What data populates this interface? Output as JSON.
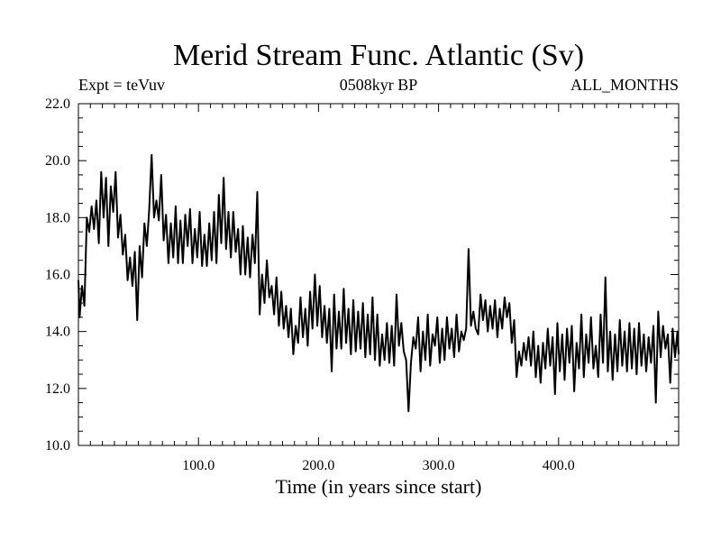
{
  "chart_data": {
    "type": "line",
    "title": "Merid Stream Func. Atlantic (Sv)",
    "left_label": "Expt = teVuv",
    "center_label": "0508kyr BP",
    "right_label": "ALL_MONTHS",
    "xlabel": "Time (in years since start)",
    "ylabel": "",
    "xlim": [
      0,
      500
    ],
    "ylim": [
      10.0,
      22.0
    ],
    "x_ticks": [
      100,
      200,
      300,
      400
    ],
    "x_tick_labels": [
      "100.0",
      "200.0",
      "300.0",
      "400.0"
    ],
    "y_ticks": [
      10,
      12,
      14,
      16,
      18,
      20,
      22
    ],
    "y_tick_labels": [
      "10.0",
      "12.0",
      "14.0",
      "16.0",
      "18.0",
      "20.0",
      "22.0"
    ],
    "line_color": "#000000",
    "series": [
      {
        "name": "",
        "anchors": [
          [
            0,
            15.8
          ],
          [
            1,
            14.5
          ],
          [
            3,
            15.6
          ],
          [
            5,
            14.9
          ],
          [
            7,
            18.0
          ],
          [
            9,
            17.5
          ],
          [
            11,
            18.4
          ],
          [
            13,
            17.6
          ],
          [
            15,
            18.6
          ],
          [
            17,
            17.1
          ],
          [
            19,
            19.6
          ],
          [
            21,
            18.0
          ],
          [
            23,
            19.4
          ],
          [
            25,
            17.0
          ],
          [
            27,
            19.1
          ],
          [
            29,
            18.2
          ],
          [
            31,
            19.6
          ],
          [
            33,
            17.3
          ],
          [
            35,
            18.1
          ],
          [
            37,
            16.7
          ],
          [
            39,
            17.4
          ],
          [
            41,
            15.8
          ],
          [
            43,
            16.6
          ],
          [
            45,
            15.6
          ],
          [
            47,
            16.8
          ],
          [
            49,
            14.4
          ],
          [
            51,
            17.0
          ],
          [
            53,
            15.9
          ],
          [
            55,
            17.8
          ],
          [
            57,
            17.0
          ],
          [
            59,
            18.3
          ],
          [
            61,
            20.2
          ],
          [
            63,
            18.0
          ],
          [
            65,
            18.6
          ],
          [
            67,
            17.9
          ],
          [
            69,
            19.5
          ],
          [
            71,
            17.2
          ],
          [
            73,
            18.1
          ],
          [
            75,
            16.4
          ],
          [
            77,
            17.8
          ],
          [
            79,
            16.6
          ],
          [
            81,
            18.4
          ],
          [
            83,
            16.4
          ],
          [
            85,
            17.9
          ],
          [
            87,
            16.4
          ],
          [
            89,
            18.1
          ],
          [
            91,
            17.0
          ],
          [
            93,
            18.3
          ],
          [
            95,
            16.4
          ],
          [
            97,
            17.6
          ],
          [
            99,
            16.6
          ],
          [
            101,
            18.2
          ],
          [
            103,
            16.3
          ],
          [
            105,
            17.4
          ],
          [
            107,
            16.3
          ],
          [
            109,
            17.8
          ],
          [
            111,
            16.5
          ],
          [
            113,
            18.2
          ],
          [
            115,
            16.4
          ],
          [
            117,
            18.8
          ],
          [
            119,
            17.1
          ],
          [
            121,
            19.4
          ],
          [
            123,
            16.9
          ],
          [
            125,
            18.2
          ],
          [
            127,
            16.6
          ],
          [
            129,
            18.2
          ],
          [
            131,
            16.8
          ],
          [
            133,
            17.6
          ],
          [
            135,
            16.0
          ],
          [
            137,
            17.7
          ],
          [
            139,
            16.0
          ],
          [
            141,
            17.3
          ],
          [
            143,
            15.9
          ],
          [
            145,
            17.4
          ],
          [
            147,
            16.4
          ],
          [
            149,
            18.9
          ],
          [
            151,
            14.6
          ],
          [
            153,
            16.0
          ],
          [
            155,
            15.0
          ],
          [
            157,
            16.5
          ],
          [
            159,
            15.2
          ],
          [
            161,
            15.6
          ],
          [
            163,
            14.6
          ],
          [
            165,
            15.9
          ],
          [
            167,
            14.2
          ],
          [
            169,
            15.4
          ],
          [
            171,
            14.1
          ],
          [
            173,
            14.9
          ],
          [
            175,
            13.8
          ],
          [
            177,
            14.8
          ],
          [
            179,
            13.2
          ],
          [
            181,
            14.2
          ],
          [
            183,
            13.6
          ],
          [
            185,
            15.2
          ],
          [
            187,
            13.8
          ],
          [
            189,
            14.8
          ],
          [
            191,
            13.5
          ],
          [
            193,
            15.4
          ],
          [
            195,
            14.1
          ],
          [
            197,
            16.0
          ],
          [
            199,
            14.2
          ],
          [
            201,
            15.6
          ],
          [
            203,
            13.8
          ],
          [
            205,
            14.9
          ],
          [
            207,
            13.6
          ],
          [
            209,
            14.8
          ],
          [
            211,
            12.6
          ],
          [
            213,
            15.3
          ],
          [
            215,
            13.4
          ],
          [
            217,
            14.7
          ],
          [
            219,
            13.4
          ],
          [
            221,
            15.5
          ],
          [
            223,
            13.6
          ],
          [
            225,
            14.8
          ],
          [
            227,
            13.2
          ],
          [
            229,
            15.1
          ],
          [
            231,
            13.3
          ],
          [
            233,
            14.7
          ],
          [
            235,
            13.4
          ],
          [
            237,
            15.0
          ],
          [
            239,
            13.1
          ],
          [
            241,
            14.6
          ],
          [
            243,
            13.2
          ],
          [
            245,
            15.2
          ],
          [
            247,
            13.0
          ],
          [
            249,
            14.6
          ],
          [
            251,
            12.8
          ],
          [
            253,
            13.9
          ],
          [
            255,
            13.0
          ],
          [
            257,
            14.3
          ],
          [
            259,
            12.9
          ],
          [
            261,
            14.2
          ],
          [
            263,
            12.8
          ],
          [
            265,
            15.3
          ],
          [
            267,
            13.5
          ],
          [
            269,
            14.3
          ],
          [
            271,
            13.3
          ],
          [
            273,
            13.0
          ],
          [
            275,
            11.2
          ],
          [
            277,
            12.9
          ],
          [
            279,
            13.8
          ],
          [
            281,
            13.4
          ],
          [
            283,
            14.5
          ],
          [
            285,
            12.6
          ],
          [
            287,
            14.0
          ],
          [
            289,
            13.0
          ],
          [
            291,
            14.6
          ],
          [
            293,
            12.8
          ],
          [
            295,
            13.9
          ],
          [
            297,
            13.5
          ],
          [
            299,
            14.5
          ],
          [
            301,
            12.9
          ],
          [
            303,
            14.1
          ],
          [
            305,
            13.0
          ],
          [
            307,
            14.5
          ],
          [
            309,
            13.4
          ],
          [
            311,
            14.1
          ],
          [
            313,
            13.1
          ],
          [
            315,
            14.6
          ],
          [
            317,
            13.3
          ],
          [
            319,
            14.0
          ],
          [
            321,
            13.7
          ],
          [
            323,
            14.1
          ],
          [
            325,
            16.9
          ],
          [
            327,
            14.2
          ],
          [
            329,
            14.7
          ],
          [
            331,
            14.1
          ],
          [
            333,
            13.9
          ],
          [
            335,
            15.3
          ],
          [
            337,
            14.4
          ],
          [
            339,
            15.1
          ],
          [
            341,
            14.0
          ],
          [
            343,
            14.9
          ],
          [
            345,
            14.1
          ],
          [
            347,
            15.1
          ],
          [
            349,
            13.8
          ],
          [
            351,
            14.8
          ],
          [
            353,
            14.1
          ],
          [
            355,
            15.2
          ],
          [
            357,
            14.5
          ],
          [
            359,
            15.0
          ],
          [
            361,
            13.6
          ],
          [
            363,
            14.4
          ],
          [
            365,
            12.4
          ],
          [
            367,
            13.3
          ],
          [
            369,
            12.8
          ],
          [
            371,
            13.6
          ],
          [
            373,
            13.0
          ],
          [
            375,
            13.8
          ],
          [
            377,
            12.8
          ],
          [
            379,
            14.0
          ],
          [
            381,
            12.4
          ],
          [
            383,
            13.5
          ],
          [
            385,
            12.2
          ],
          [
            387,
            13.6
          ],
          [
            389,
            12.7
          ],
          [
            391,
            14.1
          ],
          [
            393,
            12.8
          ],
          [
            395,
            13.8
          ],
          [
            397,
            11.8
          ],
          [
            399,
            14.3
          ],
          [
            401,
            12.6
          ],
          [
            403,
            13.9
          ],
          [
            405,
            12.3
          ],
          [
            407,
            14.1
          ],
          [
            409,
            12.9
          ],
          [
            411,
            14.2
          ],
          [
            413,
            11.9
          ],
          [
            415,
            13.6
          ],
          [
            417,
            12.7
          ],
          [
            419,
            14.6
          ],
          [
            421,
            12.4
          ],
          [
            423,
            13.9
          ],
          [
            425,
            12.9
          ],
          [
            427,
            14.5
          ],
          [
            429,
            12.7
          ],
          [
            431,
            13.5
          ],
          [
            433,
            12.4
          ],
          [
            435,
            14.6
          ],
          [
            437,
            12.9
          ],
          [
            439,
            15.9
          ],
          [
            441,
            12.6
          ],
          [
            443,
            14.0
          ],
          [
            445,
            12.3
          ],
          [
            447,
            13.9
          ],
          [
            449,
            12.6
          ],
          [
            451,
            14.4
          ],
          [
            453,
            12.8
          ],
          [
            455,
            14.0
          ],
          [
            457,
            12.6
          ],
          [
            459,
            14.3
          ],
          [
            461,
            12.7
          ],
          [
            463,
            14.1
          ],
          [
            465,
            12.5
          ],
          [
            467,
            14.3
          ],
          [
            469,
            12.8
          ],
          [
            471,
            13.9
          ],
          [
            473,
            12.6
          ],
          [
            475,
            13.8
          ],
          [
            477,
            12.9
          ],
          [
            479,
            14.2
          ],
          [
            481,
            11.5
          ],
          [
            483,
            14.7
          ],
          [
            485,
            13.1
          ],
          [
            487,
            14.2
          ],
          [
            489,
            13.4
          ],
          [
            491,
            13.9
          ],
          [
            493,
            12.2
          ],
          [
            495,
            14.1
          ],
          [
            497,
            13.1
          ],
          [
            499,
            14.0
          ],
          [
            500,
            13.2
          ]
        ]
      }
    ]
  }
}
